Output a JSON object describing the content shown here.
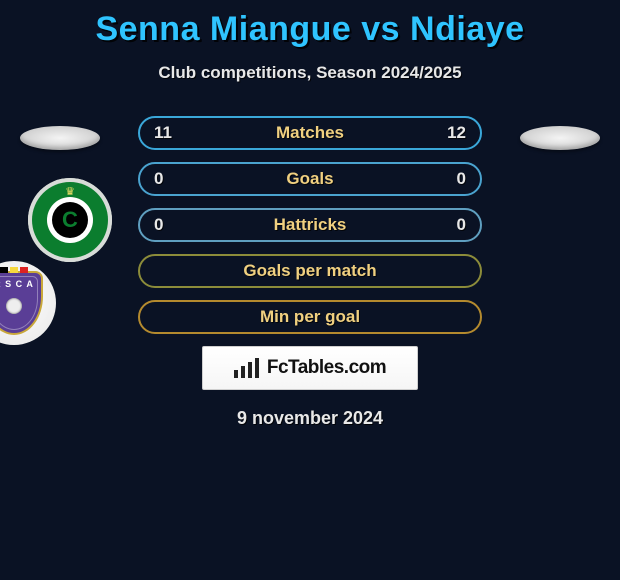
{
  "header": {
    "title": "Senna Miangue vs Ndiaye",
    "subtitle": "Club competitions, Season 2024/2025",
    "title_color": "#2fc4ff"
  },
  "stats": {
    "border_colors": [
      "#3aa7d9",
      "#4aa3cf",
      "#5f9fc0",
      "#8c8c3a",
      "#b48a2e"
    ],
    "label_color": "#f0d080",
    "value_color": "#e8e8e8",
    "rows": [
      {
        "left": "11",
        "label": "Matches",
        "right": "12"
      },
      {
        "left": "0",
        "label": "Goals",
        "right": "0"
      },
      {
        "left": "0",
        "label": "Hattricks",
        "right": "0"
      },
      {
        "left": "",
        "label": "Goals per match",
        "right": ""
      },
      {
        "left": "",
        "label": "Min per goal",
        "right": ""
      }
    ]
  },
  "branding": {
    "text": "FcTables.com"
  },
  "footer": {
    "date": "9 november 2024"
  },
  "clubs": {
    "left_name": "cercle-brugge",
    "right_name": "anderlecht"
  },
  "colors": {
    "background": "#0a1224"
  }
}
